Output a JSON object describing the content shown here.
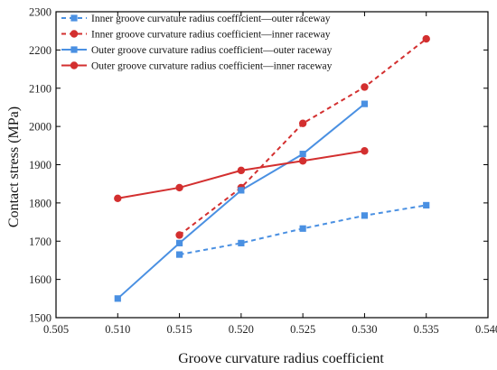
{
  "chart_data": {
    "type": "line",
    "xlabel": "Groove curvature radius coefficient",
    "ylabel": "Contact stress (MPa)",
    "xlim": [
      0.505,
      0.54
    ],
    "ylim": [
      1500,
      2300
    ],
    "xticks": [
      "0.505",
      "0.510",
      "0.515",
      "0.520",
      "0.525",
      "0.530",
      "0.535",
      "0.540"
    ],
    "yticks": [
      "1500",
      "1600",
      "1700",
      "1800",
      "1900",
      "2000",
      "2100",
      "2200",
      "2300"
    ],
    "grid": false,
    "legend_position": "top-left",
    "series": [
      {
        "name": "Inner groove curvature radius coefficient—outer raceway",
        "color": "#4a90e2",
        "line_style": "dashed",
        "marker": "square",
        "x": [
          0.515,
          0.52,
          0.525,
          0.53,
          0.535
        ],
        "y": [
          1665,
          1695,
          1733,
          1767,
          1794
        ]
      },
      {
        "name": "Inner groove curvature radius coefficient—inner raceway",
        "color": "#d32f2f",
        "line_style": "dashed",
        "marker": "circle",
        "x": [
          0.515,
          0.52,
          0.525,
          0.53,
          0.535
        ],
        "y": [
          1716,
          1840,
          2008,
          2103,
          2229
        ]
      },
      {
        "name": "Outer groove curvature radius coefficient—outer raceway",
        "color": "#4a90e2",
        "line_style": "solid",
        "marker": "square",
        "x": [
          0.51,
          0.515,
          0.52,
          0.525,
          0.53
        ],
        "y": [
          1550,
          1695,
          1833,
          1928,
          2059
        ]
      },
      {
        "name": "Outer groove curvature radius coefficient—inner raceway",
        "color": "#d32f2f",
        "line_style": "solid",
        "marker": "circle",
        "x": [
          0.51,
          0.515,
          0.52,
          0.525,
          0.53
        ],
        "y": [
          1812,
          1840,
          1885,
          1910,
          1936
        ]
      }
    ]
  }
}
